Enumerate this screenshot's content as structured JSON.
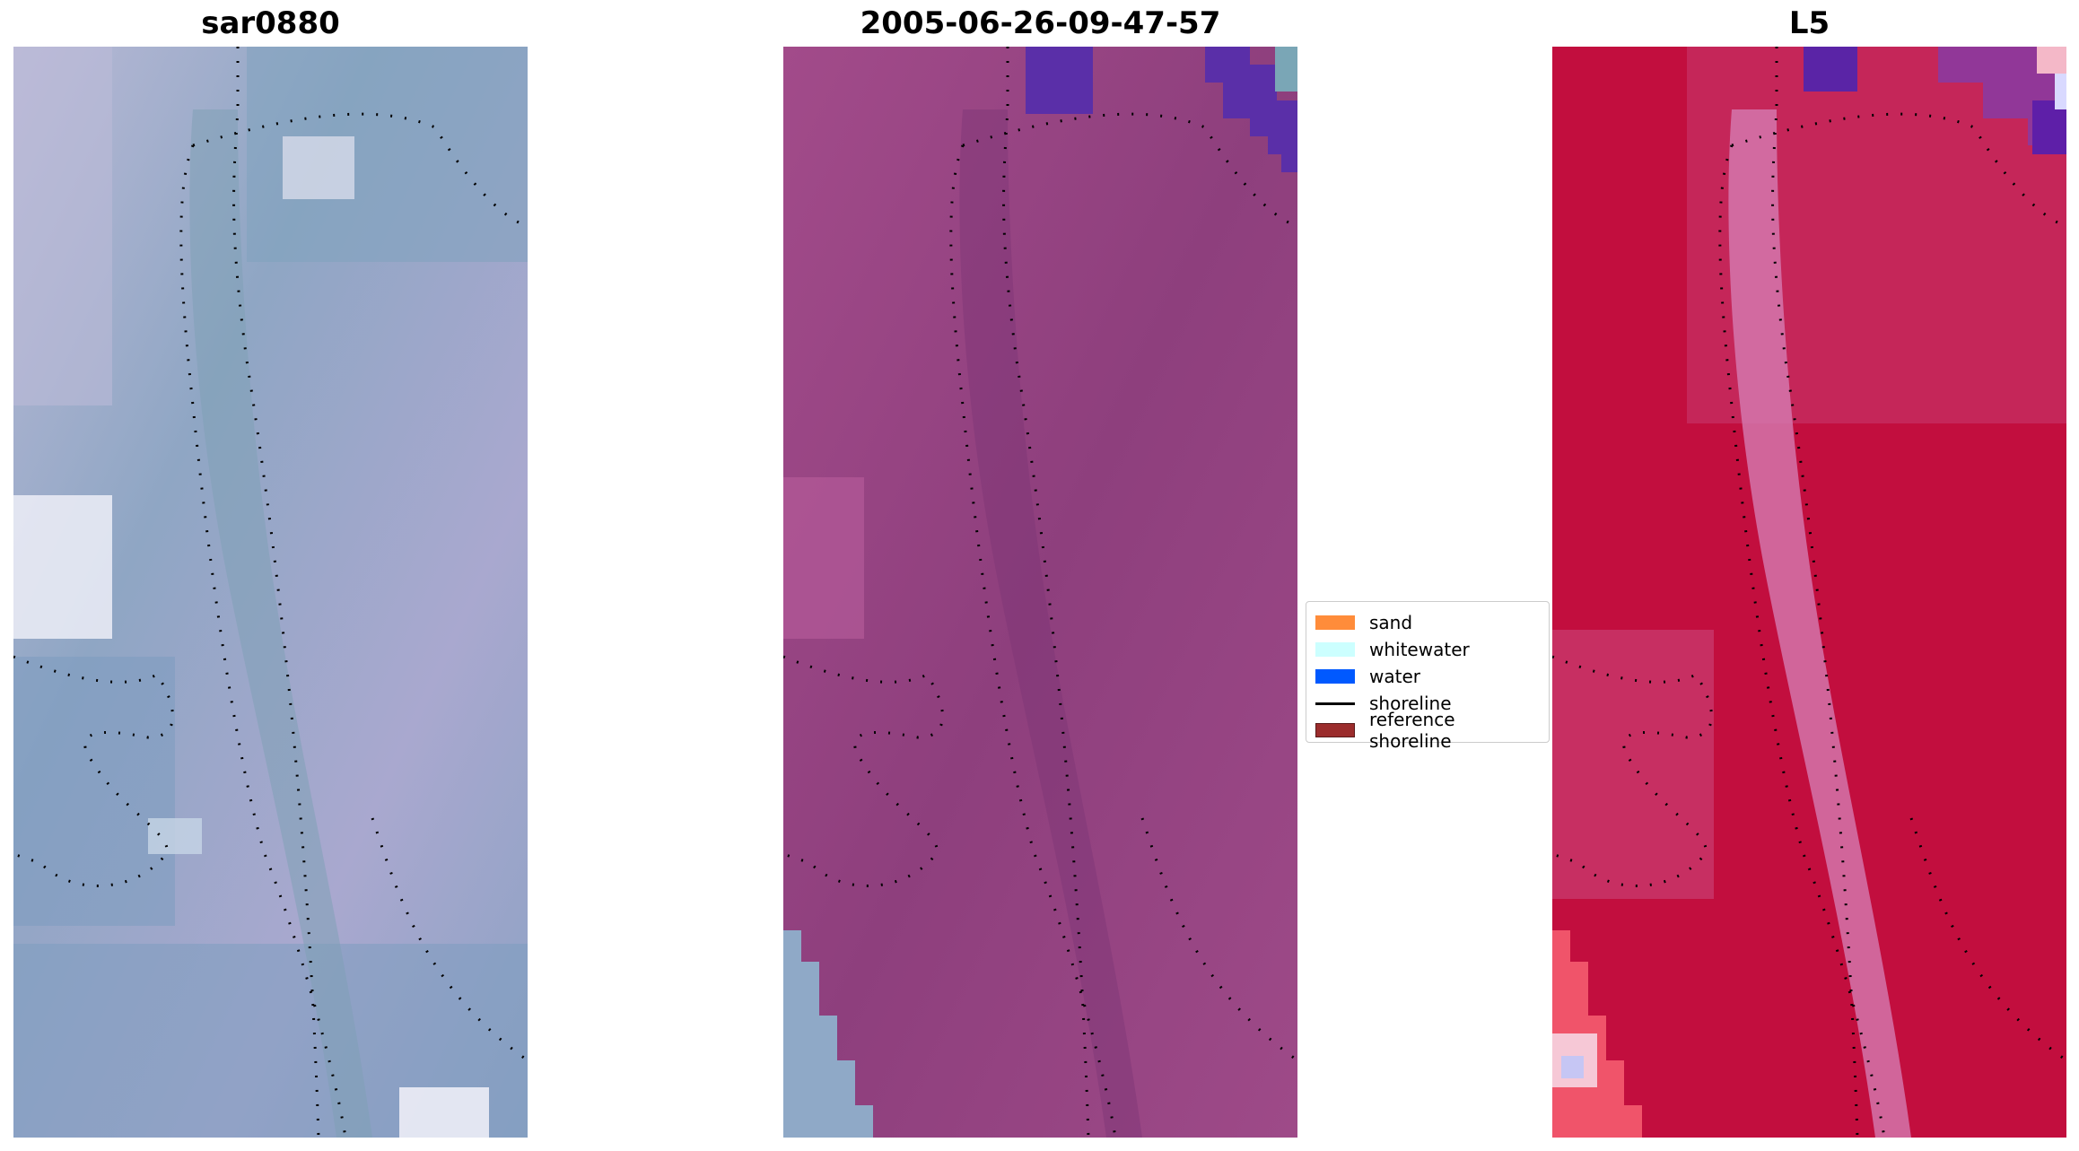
{
  "panels": [
    {
      "id": "rgb",
      "title": "sar0880",
      "base_color": "#8FA4C6"
    },
    {
      "id": "classified",
      "title": "2005-06-26-09-47-57",
      "base_color": "#9A4A86"
    },
    {
      "id": "index",
      "title": "L5",
      "base_color": "#C21145"
    }
  ],
  "legend": {
    "items": [
      {
        "label": "sand",
        "color": "#FF8C3A",
        "kind": "patch"
      },
      {
        "label": "whitewater",
        "color": "#CCFFFF",
        "kind": "patch"
      },
      {
        "label": "water",
        "color": "#0059FF",
        "kind": "patch"
      },
      {
        "label": "shoreline",
        "color": "#000000",
        "kind": "line"
      },
      {
        "label": "reference shoreline",
        "color": "#9B2C2C",
        "kind": "patch"
      }
    ]
  }
}
